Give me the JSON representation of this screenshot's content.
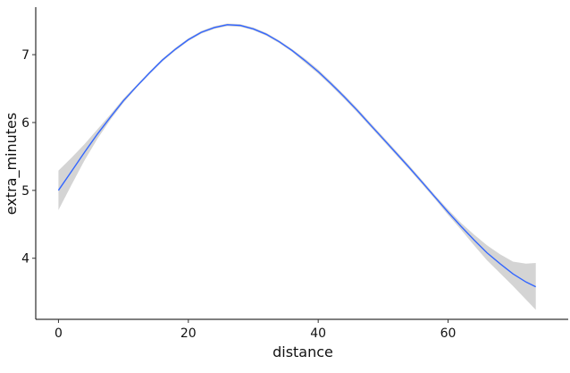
{
  "chart_data": {
    "type": "line",
    "title": "",
    "xlabel": "distance",
    "ylabel": "extra_minutes",
    "xlim": [
      -3.5,
      78.5
    ],
    "ylim": [
      3.1,
      7.7
    ],
    "x_ticks": [
      0,
      20,
      40,
      60
    ],
    "y_ticks": [
      4,
      5,
      6,
      7
    ],
    "grid": false,
    "legend": "none",
    "colors": {
      "line": "#3366ff",
      "ribbon": "#cccccc",
      "axis": "#000000"
    },
    "series": [
      {
        "x": [
          0,
          2,
          4,
          6,
          8,
          10,
          12,
          14,
          16,
          18,
          20,
          22,
          24,
          26,
          28,
          30,
          32,
          34,
          36,
          38,
          40,
          42,
          44,
          46,
          48,
          50,
          52,
          54,
          56,
          58,
          60,
          62,
          64,
          66,
          68,
          70,
          72,
          73.5
        ],
        "y": [
          5.0,
          5.28,
          5.56,
          5.83,
          6.08,
          6.32,
          6.53,
          6.73,
          6.92,
          7.08,
          7.22,
          7.33,
          7.4,
          7.44,
          7.43,
          7.38,
          7.3,
          7.19,
          7.06,
          6.91,
          6.75,
          6.57,
          6.38,
          6.18,
          5.97,
          5.76,
          5.55,
          5.34,
          5.12,
          4.9,
          4.68,
          4.47,
          4.27,
          4.08,
          3.92,
          3.77,
          3.65,
          3.58
        ],
        "ymin": [
          4.71,
          5.08,
          5.44,
          5.76,
          6.04,
          6.29,
          6.51,
          6.71,
          6.9,
          7.06,
          7.2,
          7.31,
          7.38,
          7.42,
          7.41,
          7.36,
          7.28,
          7.17,
          7.04,
          6.88,
          6.72,
          6.54,
          6.35,
          6.15,
          5.94,
          5.73,
          5.52,
          5.31,
          5.09,
          4.87,
          4.64,
          4.42,
          4.19,
          3.97,
          3.78,
          3.59,
          3.39,
          3.24
        ],
        "ymax": [
          5.29,
          5.48,
          5.68,
          5.9,
          6.12,
          6.35,
          6.55,
          6.75,
          6.94,
          7.1,
          7.24,
          7.35,
          7.42,
          7.46,
          7.45,
          7.4,
          7.32,
          7.21,
          7.08,
          6.94,
          6.78,
          6.6,
          6.41,
          6.21,
          6.0,
          5.79,
          5.58,
          5.37,
          5.15,
          4.93,
          4.72,
          4.52,
          4.35,
          4.19,
          4.06,
          3.95,
          3.92,
          3.93
        ]
      }
    ]
  }
}
